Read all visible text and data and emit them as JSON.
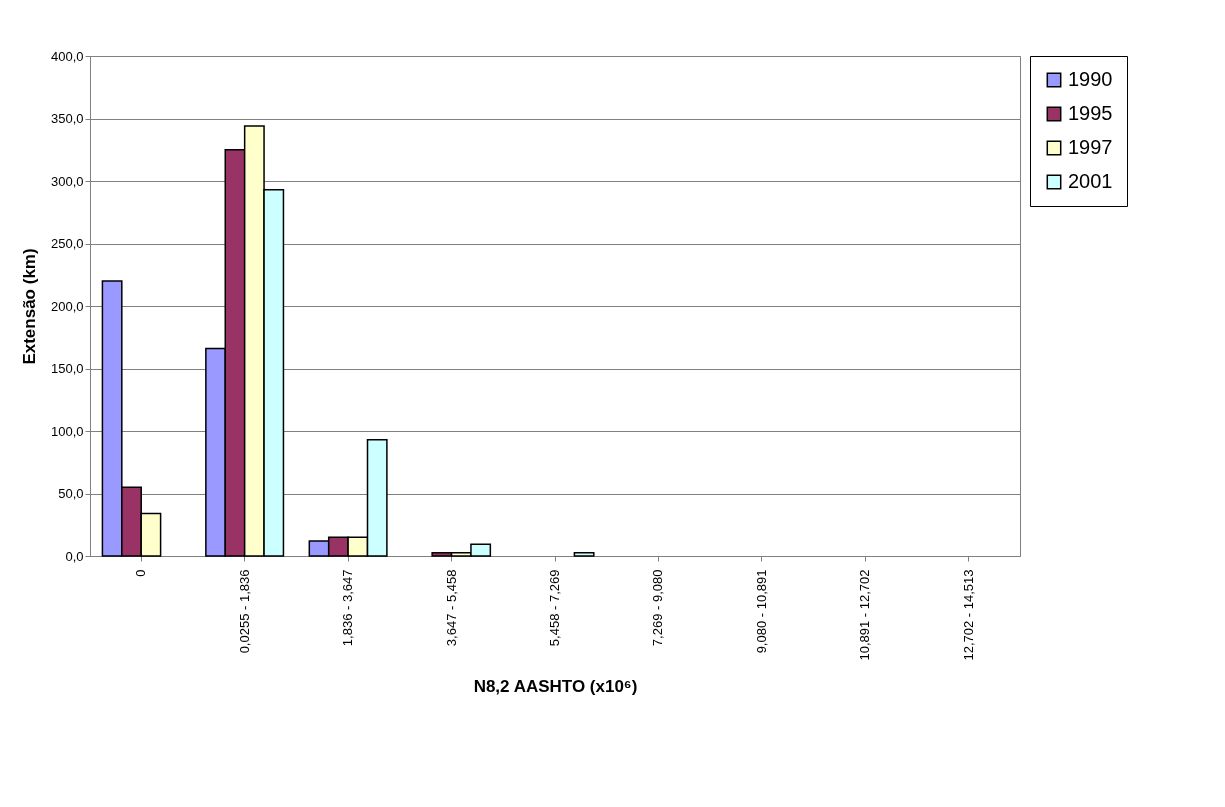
{
  "chart_data": {
    "type": "bar",
    "xlabel": "N8,2 AASHTO (x10⁶)",
    "ylabel": "Extensão (km)",
    "categories": [
      "0",
      "0,0255 - 1,836",
      "1,836 - 3,647",
      "3,647 - 5,458",
      "5,458 - 7,269",
      "7,269 - 9,080",
      "9,080 - 10,891",
      "10,891 - 12,702",
      "12,702 - 14,513"
    ],
    "series": [
      {
        "name": "1990",
        "color": "#9999ff",
        "values": [
          220,
          166,
          12,
          null,
          null,
          null,
          null,
          null,
          null
        ]
      },
      {
        "name": "1995",
        "color": "#993366",
        "values": [
          55,
          325,
          15,
          2.6,
          null,
          null,
          null,
          null,
          null
        ]
      },
      {
        "name": "1997",
        "color": "#ffffcc",
        "values": [
          34,
          344,
          15,
          2.6,
          null,
          null,
          null,
          null,
          null
        ]
      },
      {
        "name": "2001",
        "color": "#ccffff",
        "values": [
          null,
          293,
          93,
          9.5,
          2.7,
          null,
          null,
          null,
          null
        ]
      }
    ],
    "ylim": [
      0,
      400
    ],
    "yticks": [
      {
        "value": 0,
        "label": "0,0"
      },
      {
        "value": 50,
        "label": "50,0"
      },
      {
        "value": 100,
        "label": "100,0"
      },
      {
        "value": 150,
        "label": "150,0"
      },
      {
        "value": 200,
        "label": "200,0"
      },
      {
        "value": 250,
        "label": "250,0"
      },
      {
        "value": 300,
        "label": "300,0"
      },
      {
        "value": 350,
        "label": "350,0"
      },
      {
        "value": 400,
        "label": "400,0"
      }
    ],
    "grid": "y",
    "legend": "right"
  }
}
